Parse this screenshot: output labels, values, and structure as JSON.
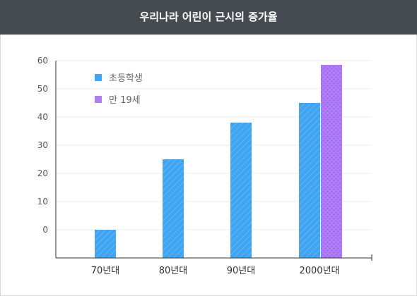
{
  "header": {
    "title": "우리나라 어린이 근시의 증가율"
  },
  "colors": {
    "header_bg": "#464b52",
    "series1": "#3fa4f2",
    "series2": "#b07ff5",
    "axis": "#333333",
    "grid": "#eeeeee"
  },
  "chart_data": {
    "type": "bar",
    "title": "우리나라 어린이 근시의 증가율",
    "xlabel": "",
    "ylabel": "",
    "categories": [
      "70년대",
      "80년대",
      "90년대",
      "2000년대"
    ],
    "series": [
      {
        "name": "초등학생",
        "values": [
          0,
          25,
          38,
          45
        ]
      },
      {
        "name": "만 19세",
        "values": [
          null,
          null,
          null,
          58.5
        ]
      }
    ],
    "y_ticks": [
      "60",
      "50",
      "40",
      "30",
      "20",
      "10",
      "0"
    ],
    "ylim": [
      -10,
      60
    ],
    "grid": true,
    "legend": "top-left"
  }
}
